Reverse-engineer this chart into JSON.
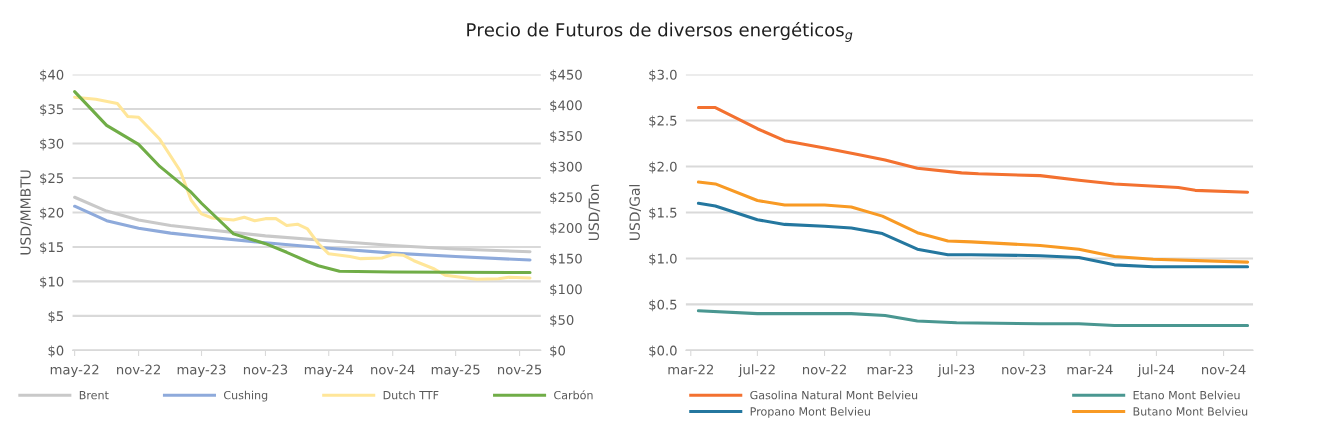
{
  "chart_data": [
    {
      "type": "line",
      "title": "Precio de Futuros de diversos energéticos$_{g}$",
      "ylabel": "USD/MMBTU",
      "y2label": "USD/Ton",
      "xlim": [
        "2022-04-25",
        "2026-01-01"
      ],
      "xticks": [
        {
          "value": "2022-05-01",
          "label": "may-22"
        },
        {
          "value": "2022-11-01",
          "label": "nov-22"
        },
        {
          "value": "2023-05-01",
          "label": "may-23"
        },
        {
          "value": "2023-11-01",
          "label": "nov-23"
        },
        {
          "value": "2024-05-01",
          "label": "may-24"
        },
        {
          "value": "2024-11-01",
          "label": "nov-24"
        },
        {
          "value": "2025-05-01",
          "label": "may-25"
        },
        {
          "value": "2025-11-01",
          "label": "nov-25"
        }
      ],
      "ylim": [
        0,
        40
      ],
      "yticks": [
        {
          "value": 0,
          "label": "$0"
        },
        {
          "value": 5,
          "label": "$5"
        },
        {
          "value": 10,
          "label": "$10"
        },
        {
          "value": 15,
          "label": "$15"
        },
        {
          "value": 20,
          "label": "$20"
        },
        {
          "value": 25,
          "label": "$25"
        },
        {
          "value": 30,
          "label": "$30"
        },
        {
          "value": 35,
          "label": "$35"
        },
        {
          "value": 40,
          "label": "$40"
        }
      ],
      "y2lim": [
        0,
        450
      ],
      "y2ticks": [
        {
          "value": 0,
          "label": "$0"
        },
        {
          "value": 50,
          "label": "$50"
        },
        {
          "value": 100,
          "label": "$100"
        },
        {
          "value": 150,
          "label": "$150"
        },
        {
          "value": 200,
          "label": "$200"
        },
        {
          "value": 250,
          "label": "$250"
        },
        {
          "value": 300,
          "label": "$300"
        },
        {
          "value": 350,
          "label": "$350"
        },
        {
          "value": 400,
          "label": "$400"
        },
        {
          "value": 450,
          "label": "$450"
        }
      ],
      "grid": "y",
      "legend": "bottom",
      "marker": "none",
      "line_style": "solid",
      "series": [
        {
          "name": "Brent",
          "color": "#c9c9c9",
          "x": [
            "2022-05",
            "2022-08",
            "2022-11",
            "2023-02",
            "2023-05",
            "2023-11",
            "2024-05",
            "2024-11",
            "2025-05",
            "2025-12"
          ],
          "values": [
            22.2,
            20.2,
            18.9,
            18.1,
            17.6,
            16.6,
            15.9,
            15.2,
            14.7,
            14.3
          ]
        },
        {
          "name": "Cushing",
          "color": "#8eaadb",
          "x": [
            "2022-05",
            "2022-08",
            "2022-11",
            "2023-02",
            "2023-05",
            "2023-11",
            "2024-05",
            "2024-11",
            "2025-05",
            "2025-12"
          ],
          "values": [
            20.9,
            18.8,
            17.7,
            17.0,
            16.5,
            15.6,
            14.8,
            14.1,
            13.6,
            13.1
          ]
        },
        {
          "name": "Dutch TTF",
          "color": "#ffe699",
          "x": [
            "2022-05",
            "2022-07",
            "2022-09",
            "2022-10",
            "2022-11",
            "2023-01",
            "2023-03",
            "2023-04",
            "2023-05",
            "2023-06",
            "2023-08",
            "2023-09",
            "2023-10",
            "2023-11",
            "2023-12",
            "2024-01",
            "2024-02",
            "2024-03",
            "2024-04",
            "2024-05",
            "2024-07",
            "2024-08",
            "2024-10",
            "2024-11",
            "2024-12",
            "2025-01",
            "2025-03",
            "2025-04",
            "2025-07",
            "2025-09",
            "2025-10",
            "2025-12"
          ],
          "values": [
            36.7,
            36.4,
            35.8,
            33.9,
            33.8,
            30.6,
            26.0,
            21.8,
            19.8,
            19.2,
            18.9,
            19.3,
            18.8,
            19.1,
            19.1,
            18.1,
            18.3,
            17.6,
            15.5,
            14.0,
            13.6,
            13.3,
            13.4,
            13.9,
            13.8,
            13.0,
            11.8,
            10.9,
            10.3,
            10.4,
            10.6,
            10.5
          ]
        },
        {
          "name": "Carbón",
          "color": "#70ad47",
          "axis": "y2",
          "x": [
            "2022-05",
            "2022-08",
            "2022-11",
            "2023-01",
            "2023-04",
            "2023-05",
            "2023-08",
            "2023-11",
            "2024-01",
            "2024-03",
            "2024-04",
            "2024-06",
            "2024-11",
            "2025-12"
          ],
          "values": [
            422,
            367,
            336,
            300,
            258,
            240,
            190,
            174,
            160,
            145,
            138,
            129,
            128,
            127
          ]
        }
      ]
    },
    {
      "type": "line",
      "ylabel": "USD/Gal",
      "xlim": [
        "2022-02-20",
        "2024-12-25"
      ],
      "xticks": [
        {
          "value": "2022-03-01",
          "label": "mar-22"
        },
        {
          "value": "2022-07-01",
          "label": "jul-22"
        },
        {
          "value": "2022-11-01",
          "label": "nov-22"
        },
        {
          "value": "2023-03-01",
          "label": "mar-23"
        },
        {
          "value": "2023-07-01",
          "label": "jul-23"
        },
        {
          "value": "2023-11-01",
          "label": "nov-23"
        },
        {
          "value": "2024-03-01",
          "label": "mar-24"
        },
        {
          "value": "2024-07-01",
          "label": "jul-24"
        },
        {
          "value": "2024-11-01",
          "label": "nov-24"
        }
      ],
      "ylim": [
        0,
        3
      ],
      "yticks": [
        {
          "value": 0,
          "label": "$0.0"
        },
        {
          "value": 0.5,
          "label": "$0.5"
        },
        {
          "value": 1,
          "label": "$1.0"
        },
        {
          "value": 1.5,
          "label": "$1.5"
        },
        {
          "value": 2,
          "label": "$2.0"
        },
        {
          "value": 2.5,
          "label": "$2.5"
        },
        {
          "value": 3,
          "label": "$3.0"
        }
      ],
      "grid": "y",
      "legend": "bottom",
      "marker": "none",
      "line_style": "solid",
      "series": [
        {
          "name": "Gasolina Natural Mont Belvieu",
          "color": "#f37130",
          "x": [
            "2022-03-15",
            "2022-04-15",
            "2022-07-01",
            "2022-08-20",
            "2022-11-01",
            "2023-01-01",
            "2023-02-20",
            "2023-04-20",
            "2023-07-10",
            "2023-08-10",
            "2023-12-01",
            "2024-02-10",
            "2024-04-15",
            "2024-08-10",
            "2024-09-10",
            "2024-12-15"
          ],
          "values": [
            2.64,
            2.64,
            2.41,
            2.28,
            2.2,
            2.13,
            2.07,
            1.98,
            1.93,
            1.92,
            1.9,
            1.85,
            1.81,
            1.77,
            1.74,
            1.72
          ]
        },
        {
          "name": "Propano Mont Belvieu",
          "color": "#24779f",
          "x": [
            "2022-03-15",
            "2022-04-15",
            "2022-07-01",
            "2022-08-20",
            "2022-11-01",
            "2022-12-20",
            "2023-02-15",
            "2023-04-20",
            "2023-06-15",
            "2023-07-28",
            "2023-12-01",
            "2024-02-10",
            "2024-04-15",
            "2024-06-25",
            "2024-12-15"
          ],
          "values": [
            1.6,
            1.57,
            1.42,
            1.37,
            1.35,
            1.33,
            1.27,
            1.1,
            1.04,
            1.04,
            1.03,
            1.01,
            0.93,
            0.91,
            0.91
          ]
        },
        {
          "name": "Etano Mont Belvieu",
          "color": "#4a9791",
          "x": [
            "2022-03-15",
            "2022-07-01",
            "2022-12-20",
            "2023-02-20",
            "2023-04-20",
            "2023-07-01",
            "2023-12-01",
            "2024-02-10",
            "2024-04-15",
            "2024-12-15"
          ],
          "values": [
            0.43,
            0.4,
            0.4,
            0.38,
            0.32,
            0.3,
            0.29,
            0.29,
            0.27,
            0.27
          ]
        },
        {
          "name": "Butano Mont Belvieu",
          "color": "#f89a24",
          "x": [
            "2022-03-15",
            "2022-04-15",
            "2022-07-01",
            "2022-08-20",
            "2022-11-01",
            "2022-12-20",
            "2023-02-15",
            "2023-04-20",
            "2023-06-15",
            "2023-07-28",
            "2023-12-01",
            "2024-02-10",
            "2024-04-15",
            "2024-06-25",
            "2024-12-15"
          ],
          "values": [
            1.83,
            1.81,
            1.63,
            1.58,
            1.58,
            1.56,
            1.46,
            1.28,
            1.19,
            1.18,
            1.14,
            1.1,
            1.02,
            0.99,
            0.96
          ]
        }
      ]
    }
  ]
}
